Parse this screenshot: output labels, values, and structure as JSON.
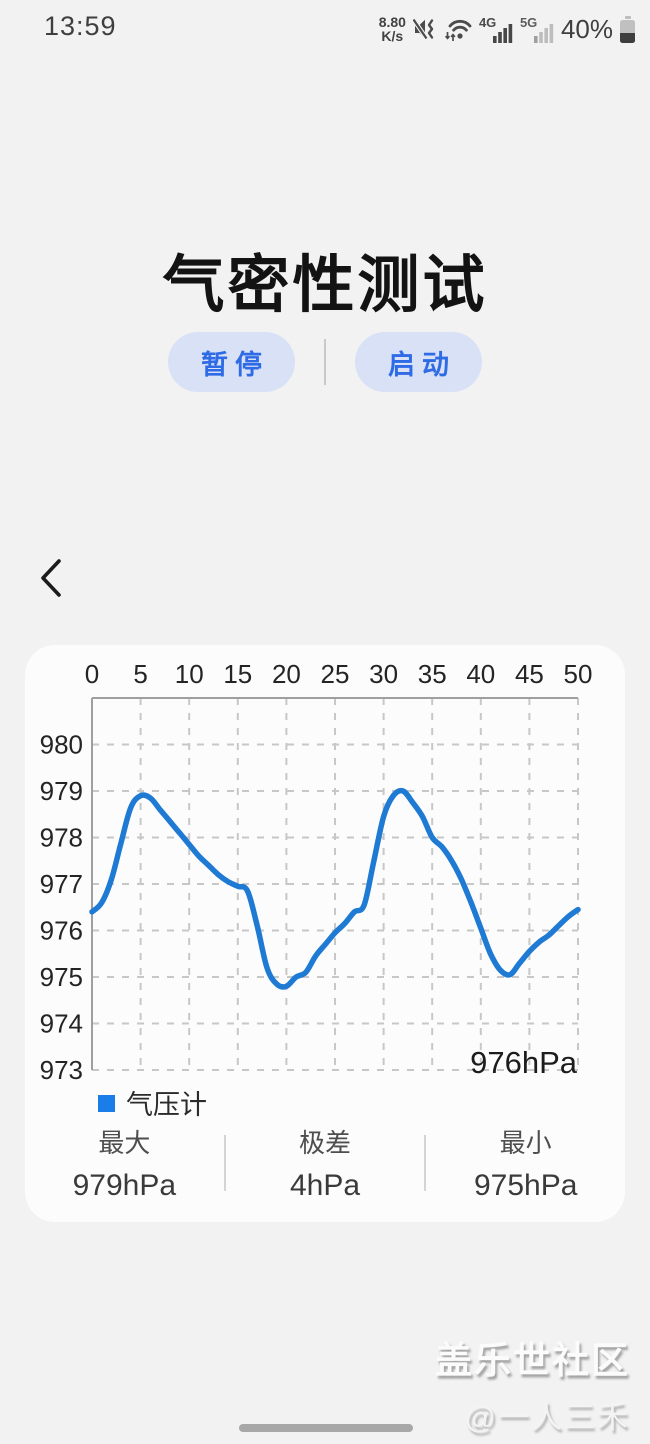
{
  "status_bar": {
    "time": "13:59",
    "network_speed_value": "8.80",
    "network_speed_unit": "K/s",
    "signal_4g_label": "4G",
    "signal_5g_label": "5G",
    "battery_percent": "40%"
  },
  "header": {
    "title": "气密性测试"
  },
  "controls": {
    "pause_label": "暂停",
    "start_label": "启动"
  },
  "chart_card": {
    "current_reading": "976hPa",
    "legend_label": "气压计",
    "stats": [
      {
        "label": "最大",
        "value": "979hPa"
      },
      {
        "label": "极差",
        "value": "4hPa"
      },
      {
        "label": "最小",
        "value": "975hPa"
      }
    ]
  },
  "chart_data": {
    "type": "line",
    "x": [
      0,
      1,
      2,
      3,
      4,
      5,
      6,
      7,
      8,
      9,
      10,
      11,
      12,
      13,
      14,
      15,
      16,
      17,
      18,
      19,
      20,
      21,
      22,
      23,
      24,
      25,
      26,
      27,
      28,
      29,
      30,
      31,
      32,
      33,
      34,
      35,
      36,
      37,
      38,
      39,
      40,
      41,
      42,
      43,
      44,
      45,
      46,
      47,
      48,
      49,
      50
    ],
    "series": [
      {
        "name": "气压计",
        "color": "#1e7ad3",
        "values": [
          976.4,
          976.6,
          977.1,
          977.9,
          978.65,
          978.9,
          978.85,
          978.6,
          978.35,
          978.1,
          977.85,
          977.6,
          977.4,
          977.2,
          977.05,
          976.95,
          976.85,
          976.1,
          975.2,
          974.85,
          974.8,
          975.0,
          975.1,
          975.45,
          975.7,
          975.95,
          976.15,
          976.4,
          976.55,
          977.5,
          978.45,
          978.9,
          979.0,
          978.75,
          978.45,
          978.0,
          977.8,
          977.5,
          977.1,
          976.6,
          976.05,
          975.5,
          975.15,
          975.05,
          975.3,
          975.55,
          975.75,
          975.9,
          976.1,
          976.3,
          976.45
        ]
      }
    ],
    "x_ticks": [
      0,
      5,
      10,
      15,
      20,
      25,
      30,
      35,
      40,
      45,
      50
    ],
    "y_ticks": [
      980,
      979,
      978,
      977,
      976,
      975,
      974,
      973
    ],
    "xlim": [
      0,
      50
    ],
    "ylim": [
      973,
      981
    ],
    "grid": true,
    "legend_position": "bottom-left",
    "annotation": "976hPa",
    "unit": "hPa",
    "title": ""
  },
  "watermark": {
    "line1": "盖乐世社区",
    "line2": "@一人三禾"
  },
  "colors": {
    "accent_blue": "#2e6be5",
    "button_bg": "#d9e1f6",
    "line_blue": "#1e7ad3",
    "legend_blue": "#1a7de8",
    "page_bg": "#f2f2f3",
    "card_bg": "#fcfcfd"
  }
}
